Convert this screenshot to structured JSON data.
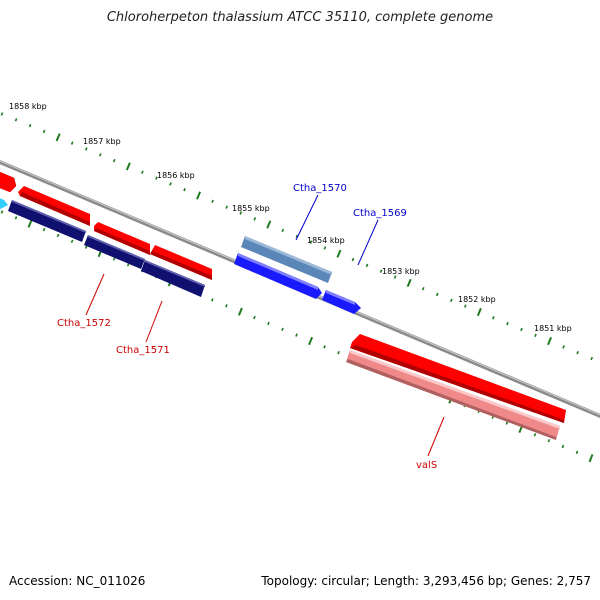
{
  "title": "Chloroherpeton thalassium ATCC 35110, complete genome",
  "accession": "Accession: NC_011026",
  "summary": "Topology: circular; Length: 3,293,456 bp; Genes: 2,757",
  "colors": {
    "backbone": "#8a8a8a",
    "tick": "#1d7a1d",
    "tick_label": "#000000",
    "forward_red": "#ff0000",
    "forward_red_dark": "#c00000",
    "pink": "#f08a8a",
    "reverse_navy": "#101070",
    "blue": "#1a1aff",
    "steelblue": "#5b86b8",
    "cyan": "#33ccff",
    "label_red": "#cc0000",
    "label_blue": "#0000cc"
  },
  "tick_labels": [
    "1858 kbp",
    "1857 kbp",
    "1856 kbp",
    "1855 kbp",
    "1854 kbp",
    "1853 kbp",
    "1852 kbp",
    "1851 kbp"
  ],
  "gene_labels": {
    "ctha_1570": "Ctha_1570",
    "ctha_1569": "Ctha_1569",
    "ctha_1572": "Ctha_1572",
    "ctha_1571": "Ctha_1571",
    "vals": "valS"
  }
}
